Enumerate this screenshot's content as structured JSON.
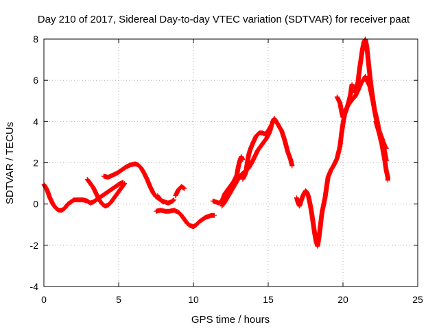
{
  "chart_data": {
    "type": "scatter",
    "title": "Day 210 of 2017, Sidereal Day-to-day VTEC variation (SDTVAR) for receiver paat",
    "xlabel": "GPS time / hours",
    "ylabel": "SDTVAR / TECUs",
    "xlim": [
      0,
      25
    ],
    "ylim": [
      -4,
      8
    ],
    "xticks": [
      0,
      5,
      10,
      15,
      20,
      25
    ],
    "yticks": [
      -4,
      -2,
      0,
      2,
      4,
      6,
      8
    ],
    "xtick_labels": [
      "0",
      "5",
      "10",
      "15",
      "20",
      "25"
    ],
    "ytick_labels": [
      "-4",
      "-2",
      "0",
      "2",
      "4",
      "6",
      "8"
    ],
    "grid": true,
    "marker": "+",
    "series": [
      {
        "name": "SDTVAR",
        "color": "#ff0000",
        "segments": [
          [
            [
              0.0,
              0.95
            ],
            [
              0.2,
              0.7
            ],
            [
              0.4,
              0.3
            ],
            [
              0.6,
              0.0
            ],
            [
              0.8,
              -0.2
            ],
            [
              1.0,
              -0.3
            ],
            [
              1.2,
              -0.3
            ],
            [
              1.4,
              -0.2
            ],
            [
              1.6,
              0.0
            ],
            [
              1.8,
              0.1
            ],
            [
              2.0,
              0.2
            ],
            [
              2.3,
              0.2
            ],
            [
              2.6,
              0.2
            ],
            [
              2.9,
              0.15
            ],
            [
              3.1,
              0.05
            ],
            [
              3.3,
              0.1
            ],
            [
              3.5,
              0.2
            ],
            [
              3.7,
              0.3
            ],
            [
              3.9,
              0.4
            ],
            [
              4.1,
              0.5
            ],
            [
              4.3,
              0.6
            ],
            [
              4.5,
              0.7
            ],
            [
              4.7,
              0.8
            ],
            [
              4.9,
              0.9
            ],
            [
              5.1,
              1.0
            ],
            [
              5.3,
              1.05
            ]
          ],
          [
            [
              2.9,
              1.2
            ],
            [
              3.1,
              1.0
            ],
            [
              3.3,
              0.8
            ],
            [
              3.5,
              0.5
            ],
            [
              3.7,
              0.2
            ],
            [
              3.9,
              0.0
            ],
            [
              4.1,
              -0.1
            ],
            [
              4.3,
              -0.05
            ],
            [
              4.5,
              0.1
            ],
            [
              4.7,
              0.3
            ],
            [
              4.9,
              0.5
            ],
            [
              5.1,
              0.7
            ],
            [
              5.3,
              0.9
            ],
            [
              5.4,
              1.0
            ]
          ],
          [
            [
              4.0,
              1.35
            ],
            [
              4.3,
              1.3
            ],
            [
              4.6,
              1.4
            ],
            [
              4.9,
              1.5
            ],
            [
              5.2,
              1.65
            ],
            [
              5.5,
              1.8
            ],
            [
              5.8,
              1.9
            ],
            [
              6.1,
              1.95
            ],
            [
              6.3,
              1.9
            ],
            [
              6.5,
              1.75
            ],
            [
              6.7,
              1.5
            ],
            [
              6.9,
              1.2
            ],
            [
              7.1,
              0.85
            ],
            [
              7.3,
              0.55
            ],
            [
              7.5,
              0.35
            ],
            [
              7.7,
              0.25
            ],
            [
              7.9,
              0.15
            ],
            [
              8.1,
              0.1
            ],
            [
              8.3,
              0.05
            ],
            [
              8.5,
              0.1
            ],
            [
              8.7,
              0.2
            ]
          ],
          [
            [
              7.6,
              0.4
            ],
            [
              7.8,
              0.2
            ],
            [
              8.0,
              0.1
            ]
          ],
          [
            [
              8.8,
              0.4
            ],
            [
              9.0,
              0.7
            ],
            [
              9.2,
              0.85
            ],
            [
              9.4,
              0.75
            ]
          ],
          [
            [
              7.5,
              -0.35
            ],
            [
              7.8,
              -0.3
            ],
            [
              8.1,
              -0.35
            ],
            [
              8.4,
              -0.35
            ],
            [
              8.7,
              -0.3
            ],
            [
              9.0,
              -0.4
            ],
            [
              9.2,
              -0.55
            ],
            [
              9.4,
              -0.75
            ],
            [
              9.6,
              -0.95
            ],
            [
              9.8,
              -1.05
            ],
            [
              10.0,
              -1.1
            ],
            [
              10.2,
              -1.0
            ],
            [
              10.4,
              -0.85
            ],
            [
              10.6,
              -0.75
            ],
            [
              10.8,
              -0.65
            ],
            [
              11.0,
              -0.6
            ],
            [
              11.2,
              -0.55
            ],
            [
              11.4,
              -0.55
            ]
          ],
          [
            [
              11.3,
              0.15
            ],
            [
              11.5,
              0.1
            ],
            [
              11.7,
              0.05
            ],
            [
              11.9,
              0.15
            ],
            [
              12.0,
              0.3
            ],
            [
              12.1,
              0.5
            ],
            [
              12.3,
              0.7
            ],
            [
              12.5,
              0.9
            ],
            [
              12.7,
              1.1
            ],
            [
              12.9,
              1.4
            ],
            [
              13.0,
              1.8
            ],
            [
              13.1,
              2.1
            ],
            [
              13.2,
              2.3
            ],
            [
              13.3,
              2.15
            ]
          ],
          [
            [
              11.9,
              -0.1
            ],
            [
              12.1,
              0.1
            ],
            [
              12.3,
              0.35
            ],
            [
              12.5,
              0.6
            ],
            [
              12.7,
              0.85
            ],
            [
              12.9,
              1.1
            ],
            [
              13.1,
              1.35
            ],
            [
              13.3,
              1.5
            ],
            [
              13.5,
              1.6
            ],
            [
              13.7,
              1.75
            ],
            [
              13.9,
              2.0
            ],
            [
              14.1,
              2.3
            ],
            [
              14.3,
              2.6
            ],
            [
              14.5,
              2.8
            ],
            [
              14.7,
              3.0
            ],
            [
              14.9,
              3.2
            ],
            [
              15.1,
              3.5
            ],
            [
              15.2,
              3.75
            ],
            [
              15.3,
              4.0
            ],
            [
              15.4,
              4.15
            ],
            [
              15.5,
              4.05
            ],
            [
              15.7,
              3.8
            ],
            [
              15.9,
              3.55
            ],
            [
              16.1,
              3.1
            ],
            [
              16.3,
              2.55
            ],
            [
              16.5,
              2.15
            ],
            [
              16.6,
              1.85
            ]
          ],
          [
            [
              13.3,
              1.2
            ],
            [
              13.5,
              1.5
            ],
            [
              13.6,
              2.0
            ],
            [
              13.7,
              2.4
            ],
            [
              13.8,
              2.65
            ],
            [
              14.0,
              3.0
            ],
            [
              14.2,
              3.3
            ],
            [
              14.4,
              3.45
            ],
            [
              14.6,
              3.45
            ],
            [
              14.8,
              3.4
            ],
            [
              15.0,
              3.55
            ],
            [
              15.2,
              3.8
            ]
          ],
          [
            [
              16.9,
              0.3
            ],
            [
              17.0,
              0.05
            ],
            [
              17.1,
              -0.1
            ],
            [
              17.2,
              0.15
            ],
            [
              17.35,
              0.45
            ],
            [
              17.5,
              0.65
            ],
            [
              17.6,
              0.55
            ],
            [
              17.7,
              0.35
            ],
            [
              17.8,
              0.0
            ],
            [
              17.9,
              -0.4
            ],
            [
              18.0,
              -0.9
            ],
            [
              18.1,
              -1.4
            ],
            [
              18.2,
              -1.8
            ],
            [
              18.3,
              -2.05
            ],
            [
              18.4,
              -1.6
            ],
            [
              18.5,
              -1.0
            ],
            [
              18.6,
              -0.4
            ],
            [
              18.7,
              -0.05
            ],
            [
              18.8,
              0.3
            ],
            [
              18.9,
              0.8
            ],
            [
              19.0,
              1.3
            ],
            [
              19.2,
              1.65
            ],
            [
              19.4,
              1.9
            ],
            [
              19.6,
              2.2
            ],
            [
              19.8,
              2.8
            ],
            [
              19.9,
              3.4
            ],
            [
              20.0,
              3.9
            ],
            [
              20.1,
              4.3
            ],
            [
              20.2,
              4.6
            ],
            [
              20.4,
              4.85
            ],
            [
              20.6,
              5.05
            ],
            [
              20.8,
              5.2
            ],
            [
              21.0,
              5.5
            ],
            [
              21.2,
              5.85
            ],
            [
              21.4,
              6.05
            ],
            [
              21.5,
              6.2
            ],
            [
              21.6,
              6.0
            ],
            [
              21.8,
              5.7
            ],
            [
              22.0,
              5.0
            ],
            [
              22.2,
              4.2
            ],
            [
              22.4,
              3.6
            ],
            [
              22.6,
              3.2
            ],
            [
              22.8,
              2.8
            ],
            [
              22.9,
              2.7
            ]
          ],
          [
            [
              19.6,
              5.2
            ],
            [
              19.8,
              4.9
            ],
            [
              19.9,
              4.5
            ],
            [
              20.0,
              4.2
            ],
            [
              20.2,
              4.5
            ],
            [
              20.4,
              5.0
            ],
            [
              20.5,
              5.3
            ],
            [
              20.6,
              5.8
            ],
            [
              20.7,
              5.5
            ]
          ],
          [
            [
              20.8,
              5.4
            ],
            [
              21.0,
              5.9
            ],
            [
              21.1,
              6.5
            ],
            [
              21.2,
              7.0
            ],
            [
              21.3,
              7.5
            ],
            [
              21.4,
              7.85
            ],
            [
              21.5,
              8.0
            ],
            [
              21.6,
              7.6
            ],
            [
              21.7,
              6.9
            ],
            [
              21.8,
              6.2
            ],
            [
              21.9,
              5.6
            ],
            [
              22.0,
              5.1
            ],
            [
              22.1,
              4.6
            ],
            [
              22.2,
              4.3
            ],
            [
              22.3,
              4.0
            ],
            [
              22.4,
              3.6
            ],
            [
              22.5,
              3.2
            ],
            [
              22.6,
              2.9
            ],
            [
              22.7,
              2.5
            ],
            [
              22.8,
              2.1
            ],
            [
              22.9,
              1.6
            ],
            [
              23.0,
              1.3
            ],
            [
              23.0,
              1.15
            ]
          ],
          [
            [
              22.2,
              4.0
            ],
            [
              22.4,
              3.5
            ],
            [
              22.6,
              3.0
            ],
            [
              22.8,
              2.5
            ],
            [
              22.9,
              2.1
            ]
          ]
        ]
      }
    ]
  }
}
